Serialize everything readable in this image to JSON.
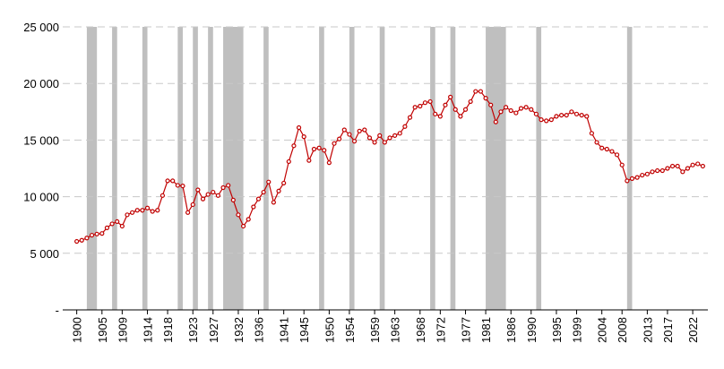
{
  "chart_data": {
    "type": "line",
    "x": [
      1900,
      1901,
      1902,
      1903,
      1904,
      1905,
      1906,
      1907,
      1908,
      1909,
      1910,
      1911,
      1912,
      1913,
      1914,
      1915,
      1916,
      1917,
      1918,
      1919,
      1920,
      1921,
      1922,
      1923,
      1924,
      1925,
      1926,
      1927,
      1928,
      1929,
      1930,
      1931,
      1932,
      1933,
      1934,
      1935,
      1936,
      1937,
      1938,
      1939,
      1940,
      1941,
      1942,
      1943,
      1944,
      1945,
      1946,
      1947,
      1948,
      1949,
      1950,
      1951,
      1952,
      1953,
      1954,
      1955,
      1956,
      1957,
      1958,
      1959,
      1960,
      1961,
      1962,
      1963,
      1964,
      1965,
      1966,
      1967,
      1968,
      1969,
      1970,
      1971,
      1972,
      1973,
      1974,
      1975,
      1976,
      1977,
      1978,
      1979,
      1980,
      1981,
      1982,
      1983,
      1984,
      1985,
      1986,
      1987,
      1988,
      1989,
      1990,
      1991,
      1992,
      1993,
      1994,
      1995,
      1996,
      1997,
      1998,
      1999,
      2000,
      2001,
      2002,
      2003,
      2004,
      2005,
      2006,
      2007,
      2008,
      2009,
      2010,
      2011,
      2012,
      2013,
      2014,
      2015,
      2016,
      2017,
      2018,
      2019,
      2020,
      2021,
      2022,
      2023,
      2024
    ],
    "series": [
      {
        "color": "#c00000",
        "values": [
          6050,
          6150,
          6350,
          6600,
          6700,
          6750,
          7250,
          7600,
          7800,
          7400,
          8400,
          8600,
          8800,
          8800,
          9000,
          8700,
          8800,
          10100,
          11400,
          11400,
          11000,
          10950,
          8600,
          9300,
          10600,
          9800,
          10200,
          10400,
          10100,
          10800,
          11000,
          9700,
          8400,
          7400,
          8000,
          9100,
          9800,
          10400,
          11300,
          9500,
          10500,
          11200,
          13100,
          14500,
          16100,
          15300,
          13200,
          14200,
          14300,
          14100,
          13000,
          14700,
          15100,
          15900,
          15500,
          14900,
          15800,
          15900,
          15200,
          14800,
          15400,
          14800,
          15200,
          15400,
          15600,
          16200,
          17000,
          17900,
          18000,
          18300,
          18400,
          17300,
          17100,
          18100,
          18800,
          17700,
          17100,
          17700,
          18400,
          19300,
          19300,
          18700,
          18100,
          16600,
          17500,
          17900,
          17600,
          17400,
          17800,
          17900,
          17700,
          17300,
          16800,
          16700,
          16800,
          17100,
          17200,
          17200,
          17500,
          17300,
          17200,
          17100,
          15600,
          14800,
          14300,
          14200,
          14000,
          13700,
          12800,
          11400,
          11600,
          11700,
          11900,
          12000,
          12200,
          12300,
          12300,
          12500,
          12700,
          12700,
          12200,
          12500,
          12800,
          12900,
          12700
        ]
      }
    ],
    "recessions": [
      [
        1902,
        1904
      ],
      [
        1907,
        1908
      ],
      [
        1913,
        1914
      ],
      [
        1920,
        1921
      ],
      [
        1923,
        1924
      ],
      [
        1926,
        1927
      ],
      [
        1929,
        1933
      ],
      [
        1937,
        1938
      ],
      [
        1948,
        1949
      ],
      [
        1954,
        1955
      ],
      [
        1960,
        1961
      ],
      [
        1970,
        1971
      ],
      [
        1974,
        1975
      ],
      [
        1981,
        1985
      ],
      [
        1991,
        1992
      ],
      [
        2009,
        2010
      ]
    ],
    "recession_color": "#bfbfbf",
    "xlim": [
      1899,
      2025
    ],
    "xticks": [
      1900,
      1905,
      1909,
      1914,
      1918,
      1923,
      1927,
      1932,
      1936,
      1941,
      1945,
      1950,
      1954,
      1959,
      1963,
      1968,
      1972,
      1977,
      1981,
      1986,
      1990,
      1995,
      1999,
      2004,
      2008,
      2013,
      2017,
      2022
    ],
    "ylim": [
      0,
      25000
    ],
    "yticks": [
      {
        "value": 0,
        "label": "-"
      },
      {
        "value": 5000,
        "label": "5 000"
      },
      {
        "value": 10000,
        "label": "10 000"
      },
      {
        "value": 15000,
        "label": "15 000"
      },
      {
        "value": 20000,
        "label": "20 000"
      },
      {
        "value": 25000,
        "label": "25 000"
      }
    ],
    "grid": true
  }
}
